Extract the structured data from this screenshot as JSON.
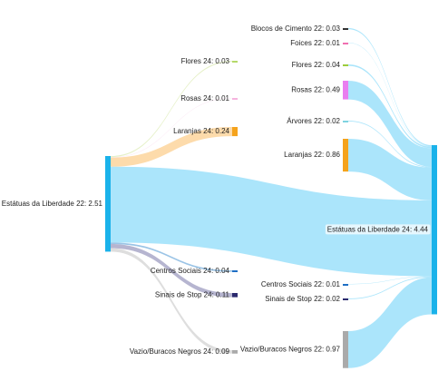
{
  "chart_data": {
    "type": "sankey",
    "nodes": [
      {
        "label": "Estátuas da Liberdade 22: 2.51",
        "value": 2.51,
        "color": "#1ab2ea"
      },
      {
        "label": "Flores 24: 0.03",
        "value": 0.03,
        "color": "#b5d96a"
      },
      {
        "label": "Rosas 24: 0.01",
        "value": 0.01,
        "color": "#f5b3de"
      },
      {
        "label": "Laranjas 24: 0.24",
        "value": 0.24,
        "color": "#f5a31c"
      },
      {
        "label": "Centros Sociais 24: 0.04",
        "value": 0.04,
        "color": "#1f6fc4"
      },
      {
        "label": "Sinais de Stop 24: 0.11",
        "value": 0.11,
        "color": "#2b2a6e"
      },
      {
        "label": "Vazio/Buracos Negros 24: 0.09",
        "value": 0.09,
        "color": "#aaaaaa"
      },
      {
        "label": "Blocos de Cimento 22: 0.03",
        "value": 0.03,
        "color": "#333333"
      },
      {
        "label": "Foices 22: 0.01",
        "value": 0.01,
        "color": "#f06fb0"
      },
      {
        "label": "Flores 22: 0.04",
        "value": 0.04,
        "color": "#9ccc3c"
      },
      {
        "label": "Rosas 22: 0.49",
        "value": 0.49,
        "color": "#e97ef0"
      },
      {
        "label": "Árvores 22: 0.02",
        "value": 0.02,
        "color": "#7fd3e0"
      },
      {
        "label": "Laranjas 22: 0.86",
        "value": 0.86,
        "color": "#f5a31c"
      },
      {
        "label": "Centros Sociais 22: 0.01",
        "value": 0.01,
        "color": "#1f6fc4"
      },
      {
        "label": "Sinais de Stop 22: 0.02",
        "value": 0.02,
        "color": "#2b2a6e"
      },
      {
        "label": "Vazio/Buracos Negros 22: 0.97",
        "value": 0.97,
        "color": "#aaaaaa"
      },
      {
        "label": "Estátuas da Liberdade 24: 4.44",
        "value": 4.44,
        "color": "#1ab2ea"
      }
    ],
    "links": [
      {
        "source": 0,
        "target": 1,
        "value": 0.03,
        "color": "#dcebb4"
      },
      {
        "source": 0,
        "target": 2,
        "value": 0.01,
        "color": "#f8d6ec"
      },
      {
        "source": 0,
        "target": 3,
        "value": 0.24,
        "color": "#fccf8f"
      },
      {
        "source": 7,
        "target": 16,
        "value": 0.03,
        "color": "#8fdcfa"
      },
      {
        "source": 8,
        "target": 16,
        "value": 0.01,
        "color": "#8fdcfa"
      },
      {
        "source": 9,
        "target": 16,
        "value": 0.04,
        "color": "#8fdcfa"
      },
      {
        "source": 10,
        "target": 16,
        "value": 0.49,
        "color": "#8fdcfa"
      },
      {
        "source": 11,
        "target": 16,
        "value": 0.02,
        "color": "#8fdcfa"
      },
      {
        "source": 12,
        "target": 16,
        "value": 0.86,
        "color": "#8fdcfa"
      },
      {
        "source": 0,
        "target": 16,
        "value": 1.99,
        "color": "#8fdcfa"
      },
      {
        "source": 0,
        "target": 4,
        "value": 0.04,
        "color": "#7ab0dd"
      },
      {
        "source": 0,
        "target": 5,
        "value": 0.11,
        "color": "#9e9cc0"
      },
      {
        "source": 0,
        "target": 6,
        "value": 0.09,
        "color": "#d3d3d3"
      },
      {
        "source": 13,
        "target": 16,
        "value": 0.01,
        "color": "#8fdcfa"
      },
      {
        "source": 14,
        "target": 16,
        "value": 0.02,
        "color": "#8fdcfa"
      },
      {
        "source": 15,
        "target": 16,
        "value": 0.97,
        "color": "#8fdcfa"
      }
    ]
  }
}
